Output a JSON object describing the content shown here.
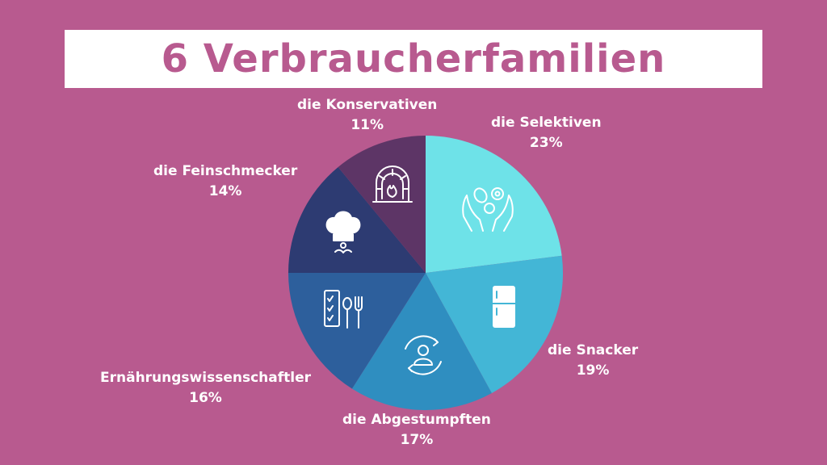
{
  "title": "6 Verbraucherfamilien",
  "colors": {
    "background": "#b85a8f",
    "title_text": "#b85a8f"
  },
  "chart_data": {
    "type": "pie",
    "title": "6 Verbraucherfamilien",
    "slices": [
      {
        "label": "die Selektiven",
        "value": 23,
        "display": "23%",
        "color": "#6ee2e8",
        "icon": "hands-produce-icon"
      },
      {
        "label": "die Snacker",
        "value": 19,
        "display": "19%",
        "color": "#43b6d6",
        "icon": "fridge-icon"
      },
      {
        "label": "die Abgestumpften",
        "value": 17,
        "display": "17%",
        "color": "#2f8ec0",
        "icon": "person-cycle-icon"
      },
      {
        "label": "Ernährungswissenschaftler",
        "value": 16,
        "display": "16%",
        "color": "#2d5f9c",
        "icon": "checklist-cutlery-icon"
      },
      {
        "label": "die Feinschmecker",
        "value": 14,
        "display": "14%",
        "color": "#2d3b72",
        "icon": "chef-hat-icon"
      },
      {
        "label": "die Konservativen",
        "value": 11,
        "display": "11%",
        "color": "#5d3566",
        "icon": "oven-fire-icon"
      }
    ]
  }
}
